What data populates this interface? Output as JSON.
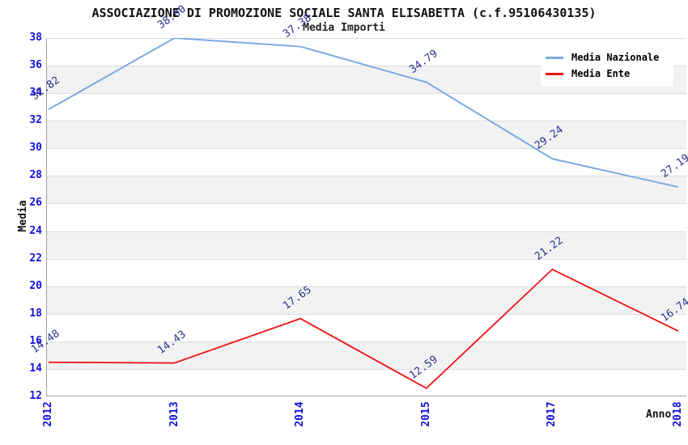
{
  "chart_data": {
    "type": "line",
    "title": "ASSOCIAZIONE DI PROMOZIONE SOCIALE SANTA ELISABETTA (c.f.95106430135)",
    "subtitle": "Media Importi",
    "xlabel": "Anno",
    "ylabel": "Media",
    "categories": [
      "2012",
      "2013",
      "2014",
      "2015",
      "2017",
      "2018"
    ],
    "series": [
      {
        "name": "Media Nazionale",
        "color": "#7aabe2",
        "values": [
          32.82,
          38.0,
          37.38,
          34.79,
          29.24,
          27.19
        ],
        "labels": [
          "32.82",
          "38.00",
          "37.38",
          "34.79",
          "29.24",
          "27.19"
        ]
      },
      {
        "name": "Media Ente",
        "color": "#ee1111",
        "values": [
          14.48,
          14.43,
          17.65,
          12.59,
          21.22,
          16.74
        ],
        "labels": [
          "14.48",
          "14.43",
          "17.65",
          "12.59",
          "21.22",
          "16.74"
        ]
      }
    ],
    "ylim": [
      12,
      38
    ],
    "yticks": [
      12,
      14,
      16,
      18,
      20,
      22,
      24,
      26,
      28,
      30,
      32,
      34,
      36,
      38
    ],
    "grid": true,
    "band_color": "#f2f2f2",
    "grid_color": "#dcdcdc",
    "axis_color": "#a0a0a0",
    "tick_label_color": "#1111dd",
    "point_label_color": "#2d2d8f",
    "legend_position": "top-right"
  }
}
